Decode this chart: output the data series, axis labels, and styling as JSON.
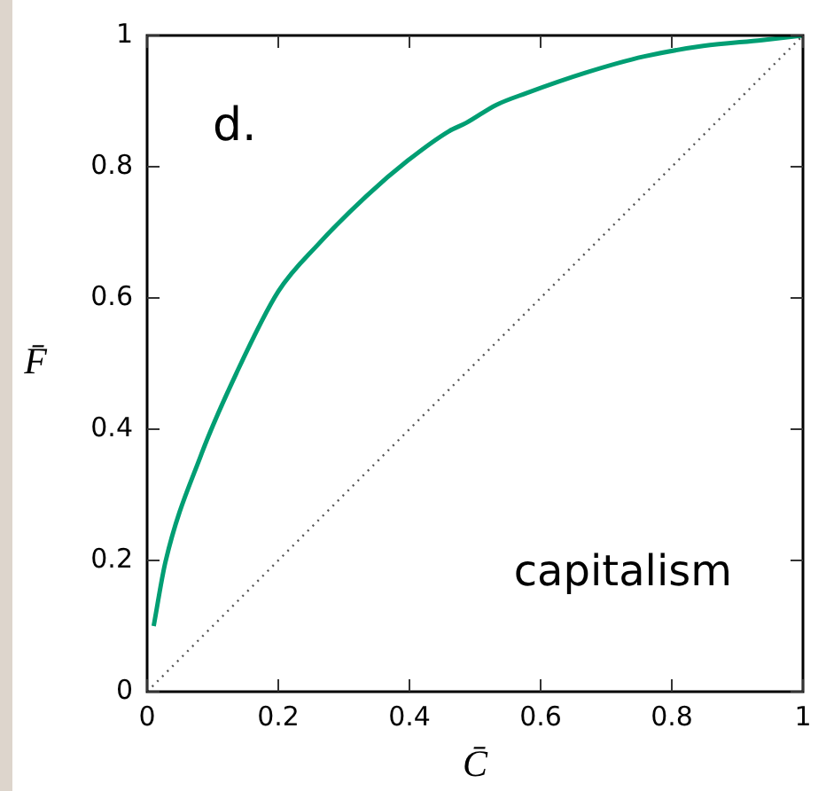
{
  "chart_data": {
    "type": "line",
    "xlabel": "C̄",
    "ylabel": "F̄",
    "annotations": [
      "d.",
      "capitalism"
    ],
    "xlim": [
      0,
      1
    ],
    "ylim": [
      0,
      1
    ],
    "xticks": [
      0,
      0.2,
      0.4,
      0.6,
      0.8,
      1
    ],
    "yticks": [
      0,
      0.2,
      0.4,
      0.6,
      0.8,
      1
    ],
    "grid": false,
    "legend": false,
    "marker": "none",
    "series": [
      {
        "color": "#009e73",
        "line_style": "solid",
        "x": [
          0.01,
          0.028,
          0.082,
          0.136,
          0.2,
          0.262,
          0.334,
          0.397,
          0.46,
          0.487,
          0.532,
          0.578,
          0.668,
          0.758,
          0.848,
          0.938,
          1
        ],
        "values": [
          0.1,
          0.198,
          0.36,
          0.485,
          0.61,
          0.683,
          0.755,
          0.809,
          0.854,
          0.867,
          0.894,
          0.912,
          0.943,
          0.968,
          0.984,
          0.993,
          1
        ]
      },
      {
        "color": "#555555",
        "line_style": "dotted",
        "x": [
          0,
          1
        ],
        "values": [
          0,
          1
        ]
      }
    ]
  }
}
